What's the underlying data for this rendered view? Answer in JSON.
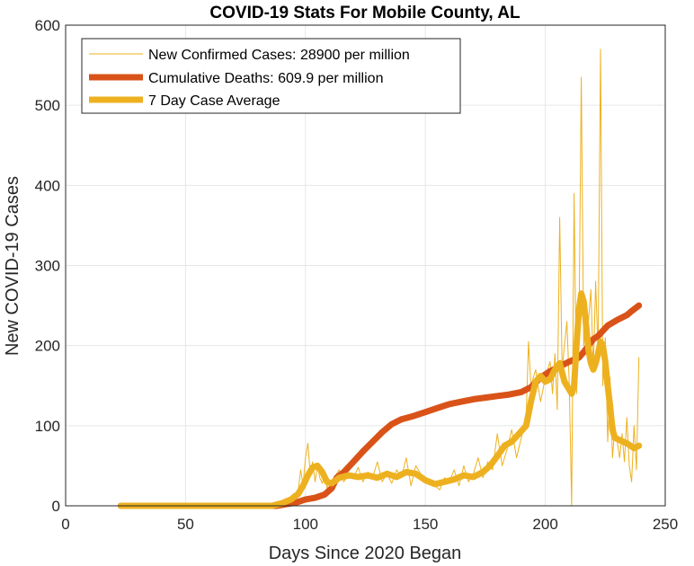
{
  "chart_data": {
    "type": "line",
    "title": "COVID-19 Stats For Mobile County, AL",
    "xlabel": "Days Since 2020 Began",
    "ylabel": "New COVID-19 Cases",
    "xlim": [
      0,
      250
    ],
    "ylim": [
      0,
      600
    ],
    "xticks": [
      "0",
      "50",
      "100",
      "150",
      "200",
      "250"
    ],
    "yticks": [
      "0",
      "100",
      "200",
      "300",
      "400",
      "500",
      "600"
    ],
    "grid": true,
    "legend_position": "top-left",
    "series": [
      {
        "name": "New Confirmed Cases: 28900 per million",
        "color": "#EDB120",
        "style": "thin",
        "points": [
          [
            23,
            0
          ],
          [
            30,
            0
          ],
          [
            40,
            0
          ],
          [
            50,
            0
          ],
          [
            60,
            0
          ],
          [
            70,
            0
          ],
          [
            80,
            0
          ],
          [
            85,
            0
          ],
          [
            88,
            2
          ],
          [
            90,
            5
          ],
          [
            92,
            3
          ],
          [
            94,
            10
          ],
          [
            95,
            15
          ],
          [
            96,
            8
          ],
          [
            97,
            20
          ],
          [
            98,
            45
          ],
          [
            99,
            25
          ],
          [
            100,
            60
          ],
          [
            101,
            78
          ],
          [
            102,
            40
          ],
          [
            103,
            55
          ],
          [
            104,
            30
          ],
          [
            105,
            50
          ],
          [
            106,
            35
          ],
          [
            107,
            28
          ],
          [
            108,
            40
          ],
          [
            109,
            22
          ],
          [
            110,
            30
          ],
          [
            112,
            35
          ],
          [
            114,
            45
          ],
          [
            116,
            30
          ],
          [
            118,
            40
          ],
          [
            120,
            35
          ],
          [
            122,
            48
          ],
          [
            124,
            30
          ],
          [
            126,
            42
          ],
          [
            128,
            35
          ],
          [
            130,
            55
          ],
          [
            132,
            30
          ],
          [
            134,
            40
          ],
          [
            136,
            28
          ],
          [
            138,
            45
          ],
          [
            140,
            35
          ],
          [
            142,
            60
          ],
          [
            144,
            25
          ],
          [
            146,
            50
          ],
          [
            148,
            40
          ],
          [
            150,
            35
          ],
          [
            152,
            30
          ],
          [
            154,
            25
          ],
          [
            156,
            20
          ],
          [
            158,
            35
          ],
          [
            160,
            30
          ],
          [
            162,
            45
          ],
          [
            164,
            25
          ],
          [
            166,
            50
          ],
          [
            168,
            30
          ],
          [
            170,
            40
          ],
          [
            172,
            60
          ],
          [
            174,
            35
          ],
          [
            176,
            55
          ],
          [
            178,
            45
          ],
          [
            180,
            90
          ],
          [
            182,
            50
          ],
          [
            184,
            70
          ],
          [
            186,
            95
          ],
          [
            188,
            60
          ],
          [
            190,
            85
          ],
          [
            192,
            110
          ],
          [
            193,
            205
          ],
          [
            194,
            150
          ],
          [
            196,
            170
          ],
          [
            198,
            130
          ],
          [
            200,
            160
          ],
          [
            202,
            180
          ],
          [
            203,
            140
          ],
          [
            204,
            190
          ],
          [
            205,
            120
          ],
          [
            206,
            360
          ],
          [
            207,
            170
          ],
          [
            208,
            200
          ],
          [
            209,
            230
          ],
          [
            210,
            150
          ],
          [
            211,
            0
          ],
          [
            212,
            390
          ],
          [
            213,
            140
          ],
          [
            214,
            210
          ],
          [
            215,
            535
          ],
          [
            216,
            200
          ],
          [
            217,
            250
          ],
          [
            218,
            230
          ],
          [
            219,
            270
          ],
          [
            220,
            170
          ],
          [
            221,
            280
          ],
          [
            222,
            190
          ],
          [
            223,
            570
          ],
          [
            224,
            150
          ],
          [
            225,
            210
          ],
          [
            226,
            80
          ],
          [
            227,
            160
          ],
          [
            228,
            60
          ],
          [
            229,
            100
          ],
          [
            230,
            80
          ],
          [
            231,
            60
          ],
          [
            232,
            90
          ],
          [
            233,
            55
          ],
          [
            234,
            110
          ],
          [
            235,
            50
          ],
          [
            236,
            30
          ],
          [
            237,
            100
          ],
          [
            238,
            45
          ],
          [
            239,
            185
          ]
        ]
      },
      {
        "name": "Cumulative Deaths: 609.9 per million",
        "color": "#D95319",
        "style": "thick",
        "points": [
          [
            23,
            0
          ],
          [
            50,
            0
          ],
          [
            80,
            0
          ],
          [
            88,
            0
          ],
          [
            92,
            2
          ],
          [
            96,
            4
          ],
          [
            100,
            8
          ],
          [
            104,
            10
          ],
          [
            108,
            14
          ],
          [
            111,
            22
          ],
          [
            113,
            35
          ],
          [
            116,
            42
          ],
          [
            120,
            55
          ],
          [
            124,
            68
          ],
          [
            128,
            80
          ],
          [
            132,
            92
          ],
          [
            136,
            102
          ],
          [
            140,
            108
          ],
          [
            145,
            112
          ],
          [
            150,
            117
          ],
          [
            155,
            122
          ],
          [
            160,
            127
          ],
          [
            165,
            130
          ],
          [
            170,
            133
          ],
          [
            175,
            135
          ],
          [
            180,
            137
          ],
          [
            185,
            139
          ],
          [
            190,
            142
          ],
          [
            194,
            148
          ],
          [
            198,
            160
          ],
          [
            202,
            168
          ],
          [
            206,
            174
          ],
          [
            210,
            180
          ],
          [
            214,
            185
          ],
          [
            216,
            192
          ],
          [
            218,
            200
          ],
          [
            220,
            208
          ],
          [
            222,
            212
          ],
          [
            226,
            225
          ],
          [
            230,
            232
          ],
          [
            234,
            238
          ],
          [
            236,
            243
          ],
          [
            239,
            250
          ]
        ]
      },
      {
        "name": "7 Day Case Average",
        "color": "#EDB120",
        "style": "thick",
        "points": [
          [
            23,
            0
          ],
          [
            50,
            0
          ],
          [
            80,
            0
          ],
          [
            86,
            0
          ],
          [
            90,
            3
          ],
          [
            94,
            8
          ],
          [
            97,
            15
          ],
          [
            99,
            25
          ],
          [
            101,
            38
          ],
          [
            103,
            48
          ],
          [
            105,
            50
          ],
          [
            107,
            42
          ],
          [
            109,
            30
          ],
          [
            111,
            28
          ],
          [
            114,
            35
          ],
          [
            118,
            38
          ],
          [
            122,
            36
          ],
          [
            126,
            38
          ],
          [
            130,
            35
          ],
          [
            134,
            40
          ],
          [
            138,
            36
          ],
          [
            142,
            42
          ],
          [
            146,
            40
          ],
          [
            150,
            32
          ],
          [
            154,
            27
          ],
          [
            158,
            30
          ],
          [
            162,
            33
          ],
          [
            166,
            38
          ],
          [
            170,
            36
          ],
          [
            174,
            42
          ],
          [
            177,
            50
          ],
          [
            180,
            62
          ],
          [
            183,
            75
          ],
          [
            186,
            80
          ],
          [
            189,
            90
          ],
          [
            192,
            100
          ],
          [
            194,
            130
          ],
          [
            196,
            155
          ],
          [
            198,
            162
          ],
          [
            200,
            155
          ],
          [
            202,
            158
          ],
          [
            204,
            170
          ],
          [
            206,
            178
          ],
          [
            208,
            155
          ],
          [
            210,
            145
          ],
          [
            211,
            140
          ],
          [
            212,
            150
          ],
          [
            213,
            200
          ],
          [
            214,
            245
          ],
          [
            215,
            265
          ],
          [
            216,
            255
          ],
          [
            217,
            225
          ],
          [
            218,
            195
          ],
          [
            219,
            178
          ],
          [
            220,
            170
          ],
          [
            221,
            178
          ],
          [
            222,
            190
          ],
          [
            223,
            205
          ],
          [
            224,
            200
          ],
          [
            225,
            180
          ],
          [
            226,
            150
          ],
          [
            227,
            125
          ],
          [
            228,
            95
          ],
          [
            229,
            85
          ],
          [
            231,
            82
          ],
          [
            234,
            78
          ],
          [
            237,
            72
          ],
          [
            239,
            75
          ]
        ]
      }
    ]
  }
}
